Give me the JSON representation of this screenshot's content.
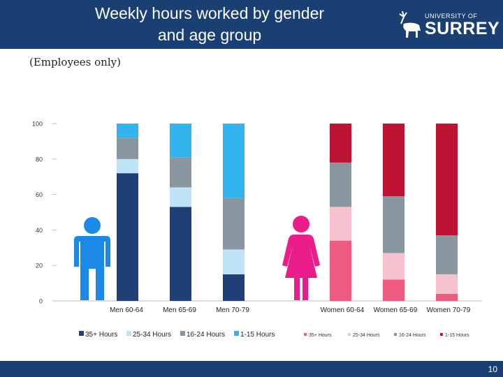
{
  "slide": {
    "title_line1": "Weekly hours worked by gender",
    "title_line2": "and age group",
    "subtitle": "(Employees only)",
    "page_number": "10",
    "logo": {
      "line1": "UNIVERSITY OF",
      "line2": "SURREY"
    }
  },
  "colors": {
    "header_bg": "#1a3f73",
    "men": [
      "#1f3f77",
      "#bfe3f7",
      "#8896a0",
      "#33b4ee"
    ],
    "women": [
      "#ef5b80",
      "#f7c1cf",
      "#8896a0",
      "#be1434"
    ],
    "men_icon": "#1a8ae6",
    "women_icon": "#ea1d8a"
  },
  "chart_data": {
    "type": "bar",
    "stacked": true,
    "ylim": [
      0,
      100
    ],
    "yticks": [
      0,
      20,
      40,
      60,
      80,
      100
    ],
    "categories": [
      "Men 60-64",
      "Men 65-69",
      "Men 70-79",
      "Women 60-64",
      "Women 65-69",
      "Women 70-79"
    ],
    "x_labels": [
      "Men   60-64",
      "Men   65-69",
      "Men   70-79",
      "Women 60-64",
      "Women 65-69",
      "Women 70-79"
    ],
    "series": [
      {
        "name": "35+ Hours",
        "values": [
          72,
          53,
          15,
          34,
          12,
          4
        ]
      },
      {
        "name": "25-34 Hours",
        "values": [
          8,
          11,
          14,
          19,
          15,
          11
        ]
      },
      {
        "name": "16-24 Hours",
        "values": [
          12,
          17,
          29,
          25,
          32,
          22
        ]
      },
      {
        "name": "1-15 Hours",
        "values": [
          8,
          19,
          42,
          22,
          41,
          63
        ]
      }
    ],
    "legend_men": [
      "35+ Hours",
      "25-34 Hours",
      "16-24 Hours",
      "1-15 Hours"
    ],
    "legend_women": [
      "35+ Hours",
      "25-34 Hours",
      "16-24 Hours",
      "1-15 Hours"
    ],
    "legend_position": "bottom",
    "grid": false
  }
}
